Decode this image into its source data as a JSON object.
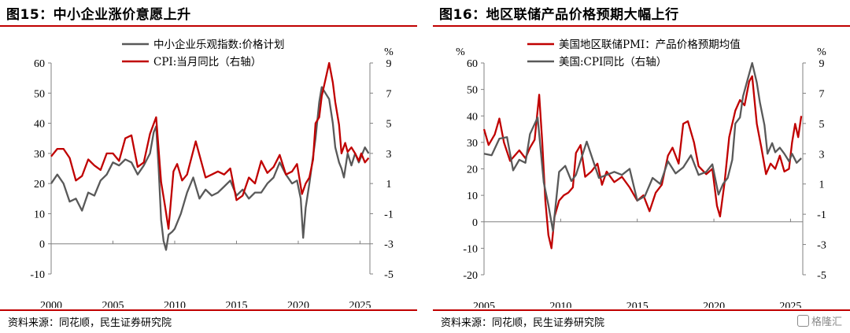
{
  "charts": [
    {
      "title": "图15：中小企业涨价意愿上升",
      "source": "资料来源：同花顺，民生证券研究院",
      "left_unit": "",
      "right_unit": "%"
    },
    {
      "title": "图16：地区联储产品价格预期大幅上行",
      "source": "资料来源：同花顺，民生证券研究院",
      "left_unit": "%",
      "right_unit": "%"
    }
  ],
  "watermark": "格隆汇",
  "chart_data": [
    {
      "type": "line",
      "title": "",
      "x_range": [
        2000,
        2025.8
      ],
      "x_ticks": [
        2000,
        2005,
        2010,
        2015,
        2020,
        2025
      ],
      "y_left": {
        "lim": [
          -10,
          60
        ],
        "ticks": [
          -10,
          0,
          10,
          20,
          30,
          40,
          50,
          60
        ]
      },
      "y_right": {
        "lim": [
          -5,
          9
        ],
        "ticks": [
          -5,
          -3,
          -1,
          1,
          3,
          5,
          7,
          9
        ],
        "label": "%"
      },
      "legend_position": "top-center",
      "series": [
        {
          "name": "中小企业乐观指数:价格计划",
          "axis": "left",
          "color": "#595959",
          "points": [
            [
              2000.0,
              20
            ],
            [
              2000.5,
              23
            ],
            [
              2001.0,
              20
            ],
            [
              2001.5,
              14
            ],
            [
              2002.0,
              15
            ],
            [
              2002.5,
              11
            ],
            [
              2003.0,
              17
            ],
            [
              2003.5,
              16
            ],
            [
              2004.0,
              21
            ],
            [
              2004.5,
              23
            ],
            [
              2005.0,
              27
            ],
            [
              2005.5,
              26
            ],
            [
              2006.0,
              28
            ],
            [
              2006.5,
              27
            ],
            [
              2007.0,
              23
            ],
            [
              2007.5,
              26
            ],
            [
              2008.0,
              30
            ],
            [
              2008.3,
              37
            ],
            [
              2008.5,
              39
            ],
            [
              2008.7,
              25
            ],
            [
              2008.9,
              8
            ],
            [
              2009.1,
              1
            ],
            [
              2009.3,
              -2
            ],
            [
              2009.5,
              3
            ],
            [
              2009.8,
              4
            ],
            [
              2010.0,
              5
            ],
            [
              2010.5,
              10
            ],
            [
              2011.0,
              17
            ],
            [
              2011.5,
              22
            ],
            [
              2012.0,
              15
            ],
            [
              2012.5,
              18
            ],
            [
              2013.0,
              16
            ],
            [
              2013.5,
              17
            ],
            [
              2014.0,
              19
            ],
            [
              2014.5,
              21
            ],
            [
              2015.0,
              16
            ],
            [
              2015.5,
              18
            ],
            [
              2016.0,
              15
            ],
            [
              2016.5,
              17
            ],
            [
              2017.0,
              17
            ],
            [
              2017.5,
              20
            ],
            [
              2018.0,
              22
            ],
            [
              2018.5,
              27
            ],
            [
              2019.0,
              23
            ],
            [
              2019.5,
              20
            ],
            [
              2019.9,
              21
            ],
            [
              2020.2,
              15
            ],
            [
              2020.4,
              2
            ],
            [
              2020.6,
              12
            ],
            [
              2020.9,
              20
            ],
            [
              2021.1,
              26
            ],
            [
              2021.4,
              35
            ],
            [
              2021.7,
              47
            ],
            [
              2021.9,
              52
            ],
            [
              2022.2,
              50
            ],
            [
              2022.5,
              48
            ],
            [
              2022.8,
              40
            ],
            [
              2023.0,
              32
            ],
            [
              2023.3,
              27
            ],
            [
              2023.5,
              25
            ],
            [
              2023.7,
              22
            ],
            [
              2024.0,
              30
            ],
            [
              2024.3,
              26
            ],
            [
              2024.6,
              30
            ],
            [
              2024.9,
              27
            ],
            [
              2025.1,
              29
            ],
            [
              2025.4,
              32
            ],
            [
              2025.7,
              30
            ]
          ]
        },
        {
          "name": "CPI:当月同比（右轴）",
          "axis": "right",
          "color": "#c00000",
          "points": [
            [
              2000.0,
              2.8
            ],
            [
              2000.5,
              3.3
            ],
            [
              2001.0,
              3.3
            ],
            [
              2001.5,
              2.7
            ],
            [
              2002.0,
              1.2
            ],
            [
              2002.5,
              1.5
            ],
            [
              2003.0,
              2.6
            ],
            [
              2003.5,
              2.2
            ],
            [
              2004.0,
              1.9
            ],
            [
              2004.5,
              3.0
            ],
            [
              2005.0,
              3.0
            ],
            [
              2005.5,
              2.5
            ],
            [
              2006.0,
              4.0
            ],
            [
              2006.5,
              4.2
            ],
            [
              2007.0,
              2.1
            ],
            [
              2007.5,
              2.4
            ],
            [
              2008.0,
              4.3
            ],
            [
              2008.5,
              5.4
            ],
            [
              2008.9,
              1.1
            ],
            [
              2009.2,
              -0.4
            ],
            [
              2009.5,
              -2.0
            ],
            [
              2009.9,
              1.8
            ],
            [
              2010.2,
              2.3
            ],
            [
              2010.6,
              1.2
            ],
            [
              2011.0,
              1.6
            ],
            [
              2011.7,
              3.8
            ],
            [
              2012.0,
              2.9
            ],
            [
              2012.5,
              1.4
            ],
            [
              2013.0,
              1.6
            ],
            [
              2013.5,
              1.8
            ],
            [
              2014.0,
              1.6
            ],
            [
              2014.5,
              2.0
            ],
            [
              2015.0,
              -0.1
            ],
            [
              2015.5,
              0.2
            ],
            [
              2016.0,
              1.4
            ],
            [
              2016.5,
              1.0
            ],
            [
              2017.0,
              2.5
            ],
            [
              2017.5,
              1.7
            ],
            [
              2018.0,
              2.1
            ],
            [
              2018.5,
              2.9
            ],
            [
              2019.0,
              1.6
            ],
            [
              2019.5,
              1.8
            ],
            [
              2019.9,
              2.3
            ],
            [
              2020.3,
              0.3
            ],
            [
              2020.6,
              1.0
            ],
            [
              2020.9,
              1.4
            ],
            [
              2021.2,
              2.6
            ],
            [
              2021.4,
              5.0
            ],
            [
              2021.7,
              5.4
            ],
            [
              2021.9,
              6.8
            ],
            [
              2022.2,
              7.9
            ],
            [
              2022.5,
              9.0
            ],
            [
              2022.8,
              7.7
            ],
            [
              2023.0,
              6.4
            ],
            [
              2023.3,
              4.9
            ],
            [
              2023.5,
              3.0
            ],
            [
              2023.8,
              3.7
            ],
            [
              2024.0,
              3.1
            ],
            [
              2024.3,
              3.4
            ],
            [
              2024.6,
              3.0
            ],
            [
              2024.9,
              2.5
            ],
            [
              2025.1,
              3.0
            ],
            [
              2025.4,
              2.4
            ],
            [
              2025.7,
              2.7
            ]
          ]
        }
      ]
    },
    {
      "type": "line",
      "title": "",
      "x_range": [
        2005,
        2025.8
      ],
      "x_ticks": [
        2005,
        2010,
        2015,
        2020,
        2025
      ],
      "y_left": {
        "lim": [
          -20,
          60
        ],
        "ticks": [
          -20,
          -10,
          0,
          10,
          20,
          30,
          40,
          50,
          60
        ],
        "label": "%"
      },
      "y_right": {
        "lim": [
          -5,
          9
        ],
        "ticks": [
          -5,
          -3,
          -1,
          1,
          3,
          5,
          7,
          9
        ],
        "label": "%"
      },
      "legend_position": "top-center",
      "series": [
        {
          "name": "美国地区联储PMI：产品价格预期均值",
          "axis": "left",
          "color": "#c00000",
          "points": [
            [
              2005.0,
              35
            ],
            [
              2005.3,
              29
            ],
            [
              2005.7,
              33
            ],
            [
              2006.0,
              39
            ],
            [
              2006.3,
              30
            ],
            [
              2006.7,
              23
            ],
            [
              2007.0,
              25
            ],
            [
              2007.3,
              27
            ],
            [
              2007.7,
              24
            ],
            [
              2008.0,
              28
            ],
            [
              2008.3,
              31
            ],
            [
              2008.6,
              48
            ],
            [
              2008.8,
              30
            ],
            [
              2009.0,
              8
            ],
            [
              2009.2,
              -5
            ],
            [
              2009.4,
              -10
            ],
            [
              2009.6,
              2
            ],
            [
              2009.9,
              8
            ],
            [
              2010.2,
              10
            ],
            [
              2010.5,
              11
            ],
            [
              2010.8,
              13
            ],
            [
              2011.0,
              26
            ],
            [
              2011.3,
              29
            ],
            [
              2011.6,
              17
            ],
            [
              2012.0,
              19
            ],
            [
              2012.4,
              22
            ],
            [
              2012.7,
              14
            ],
            [
              2013.0,
              19
            ],
            [
              2013.5,
              15
            ],
            [
              2014.0,
              17
            ],
            [
              2014.5,
              13
            ],
            [
              2015.0,
              8
            ],
            [
              2015.4,
              10
            ],
            [
              2015.8,
              4
            ],
            [
              2016.2,
              11
            ],
            [
              2016.6,
              14
            ],
            [
              2017.0,
              25
            ],
            [
              2017.3,
              28
            ],
            [
              2017.7,
              22
            ],
            [
              2018.0,
              37
            ],
            [
              2018.3,
              38
            ],
            [
              2018.7,
              30
            ],
            [
              2019.0,
              21
            ],
            [
              2019.5,
              18
            ],
            [
              2019.9,
              20
            ],
            [
              2020.2,
              6
            ],
            [
              2020.4,
              2
            ],
            [
              2020.7,
              15
            ],
            [
              2021.0,
              32
            ],
            [
              2021.4,
              42
            ],
            [
              2021.7,
              46
            ],
            [
              2022.0,
              44
            ],
            [
              2022.3,
              53
            ],
            [
              2022.5,
              55
            ],
            [
              2022.8,
              37
            ],
            [
              2023.1,
              28
            ],
            [
              2023.4,
              18
            ],
            [
              2023.7,
              22
            ],
            [
              2024.0,
              20
            ],
            [
              2024.3,
              25
            ],
            [
              2024.6,
              19
            ],
            [
              2024.9,
              20
            ],
            [
              2025.1,
              30
            ],
            [
              2025.3,
              37
            ],
            [
              2025.5,
              32
            ],
            [
              2025.7,
              40
            ]
          ]
        },
        {
          "name": "美国:CPI同比（右轴）",
          "axis": "right",
          "color": "#595959",
          "points": [
            [
              2005.0,
              3.0
            ],
            [
              2005.5,
              2.9
            ],
            [
              2006.0,
              4.0
            ],
            [
              2006.5,
              4.1
            ],
            [
              2006.9,
              1.9
            ],
            [
              2007.3,
              2.6
            ],
            [
              2007.7,
              2.4
            ],
            [
              2008.0,
              4.3
            ],
            [
              2008.5,
              5.4
            ],
            [
              2008.9,
              1.1
            ],
            [
              2009.2,
              -0.4
            ],
            [
              2009.5,
              -2.1
            ],
            [
              2009.9,
              1.8
            ],
            [
              2010.3,
              2.2
            ],
            [
              2010.7,
              1.2
            ],
            [
              2011.0,
              1.6
            ],
            [
              2011.7,
              3.8
            ],
            [
              2012.0,
              2.9
            ],
            [
              2012.5,
              1.4
            ],
            [
              2013.0,
              1.6
            ],
            [
              2013.5,
              1.8
            ],
            [
              2014.0,
              1.6
            ],
            [
              2014.5,
              2.0
            ],
            [
              2015.0,
              -0.1
            ],
            [
              2015.5,
              0.2
            ],
            [
              2016.0,
              1.4
            ],
            [
              2016.5,
              1.0
            ],
            [
              2017.0,
              2.5
            ],
            [
              2017.5,
              1.7
            ],
            [
              2018.0,
              2.1
            ],
            [
              2018.5,
              2.9
            ],
            [
              2019.0,
              1.6
            ],
            [
              2019.5,
              1.8
            ],
            [
              2019.9,
              2.3
            ],
            [
              2020.3,
              0.3
            ],
            [
              2020.6,
              1.0
            ],
            [
              2020.9,
              1.4
            ],
            [
              2021.2,
              2.6
            ],
            [
              2021.4,
              5.0
            ],
            [
              2021.7,
              5.4
            ],
            [
              2021.9,
              6.8
            ],
            [
              2022.2,
              7.9
            ],
            [
              2022.5,
              9.0
            ],
            [
              2022.8,
              7.7
            ],
            [
              2023.0,
              6.4
            ],
            [
              2023.3,
              4.9
            ],
            [
              2023.5,
              3.0
            ],
            [
              2023.8,
              3.7
            ],
            [
              2024.0,
              3.1
            ],
            [
              2024.3,
              3.4
            ],
            [
              2024.6,
              3.0
            ],
            [
              2024.9,
              2.5
            ],
            [
              2025.1,
              3.0
            ],
            [
              2025.4,
              2.4
            ],
            [
              2025.7,
              2.7
            ]
          ]
        }
      ]
    }
  ]
}
